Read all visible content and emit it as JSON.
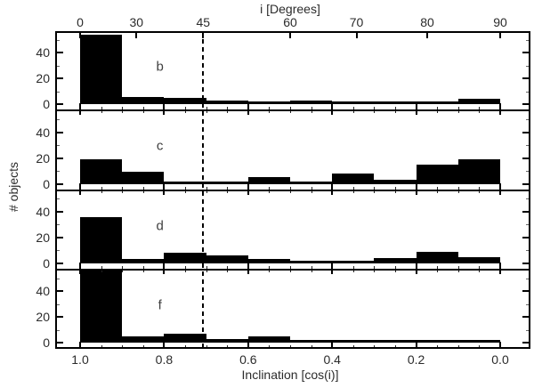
{
  "figure": {
    "top_axis": {
      "title": "i [Degrees]",
      "tick_labels": [
        "0",
        "30",
        "45",
        "60",
        "70",
        "80",
        "90"
      ]
    },
    "bottom_axis": {
      "title": "Inclination [cos(i)]",
      "tick_labels": [
        "1.0",
        "0.8",
        "0.6",
        "0.4",
        "0.2",
        "0.0"
      ]
    },
    "left_axis": {
      "title": "# objects",
      "tick_labels": [
        "0",
        "20",
        "40"
      ]
    }
  },
  "chart_data": {
    "type": "bar",
    "subtype": "stacked-multipanel-histogram",
    "title": "",
    "xlabel": "Inclination [cos(i)]",
    "xlabel_top": "i [Degrees]",
    "ylabel": "# objects",
    "bin_edges_cos_i": [
      1.0,
      0.9,
      0.8,
      0.7,
      0.6,
      0.5,
      0.4,
      0.3,
      0.2,
      0.1,
      0.0
    ],
    "panels": [
      {
        "label": "b",
        "values": [
          54,
          6,
          5,
          3,
          2,
          3,
          2,
          0,
          0,
          4
        ]
      },
      {
        "label": "c",
        "values": [
          19,
          9,
          0,
          1,
          5,
          0,
          8,
          3,
          15,
          19
        ]
      },
      {
        "label": "d",
        "values": [
          36,
          3,
          8,
          6,
          3,
          0,
          2,
          4,
          9,
          5
        ]
      },
      {
        "label": "f",
        "values": [
          56,
          5,
          7,
          3,
          5,
          2,
          1,
          1,
          0,
          0
        ]
      }
    ],
    "y_axis": {
      "ticks": [
        0,
        20,
        40
      ],
      "minor_ticks": [
        10,
        30,
        50
      ],
      "panel_top_value": 56.7,
      "grid": false
    },
    "x_axis_bottom": {
      "ticks": [
        1.0,
        0.8,
        0.6,
        0.4,
        0.2,
        0.0
      ],
      "minor_tick_step": 0.05,
      "range_shown": [
        1.06,
        -0.07
      ]
    },
    "x_axis_top": {
      "ticks_degrees": [
        0,
        30,
        45,
        60,
        70,
        80,
        90
      ]
    },
    "reference_line": {
      "degrees": 45,
      "cos_i": 0.707,
      "orientation": "vertical",
      "style": "dashed",
      "color": "#000000"
    },
    "bar_color": "#000000",
    "background_color": "#ffffff",
    "legend": false
  }
}
